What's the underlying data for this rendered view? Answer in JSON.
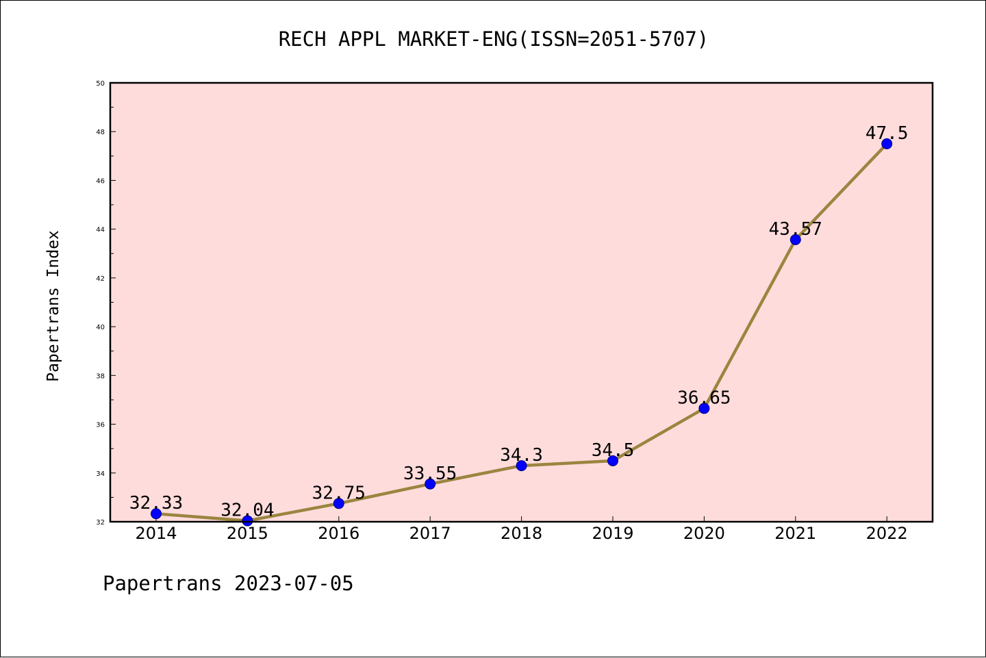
{
  "footer": "Papertrans 2023-07-05",
  "chart_data": {
    "type": "line",
    "title": "RECH APPL MARKET-ENG(ISSN=2051-5707)",
    "xlabel": "",
    "ylabel": "Papertrans Index",
    "categories": [
      "2014",
      "2015",
      "2016",
      "2017",
      "2018",
      "2019",
      "2020",
      "2021",
      "2022"
    ],
    "values": [
      32.33,
      32.04,
      32.75,
      33.55,
      34.3,
      34.5,
      36.65,
      43.57,
      47.5
    ],
    "data_labels": [
      "32.33",
      "32.04",
      "32.75",
      "33.55",
      "34.3",
      "34.5",
      "36.65",
      "43.57",
      "47.5"
    ],
    "ylim": [
      32,
      50
    ],
    "y_ticks": [
      "32",
      "34",
      "36",
      "38",
      "40",
      "42",
      "44",
      "46",
      "48",
      "50"
    ],
    "grid": false,
    "legend": "none",
    "colors": {
      "plot_background": "#ffdcdc",
      "line": "#9b8540",
      "marker": "#0000ff",
      "marker_edge": "#000080"
    }
  }
}
